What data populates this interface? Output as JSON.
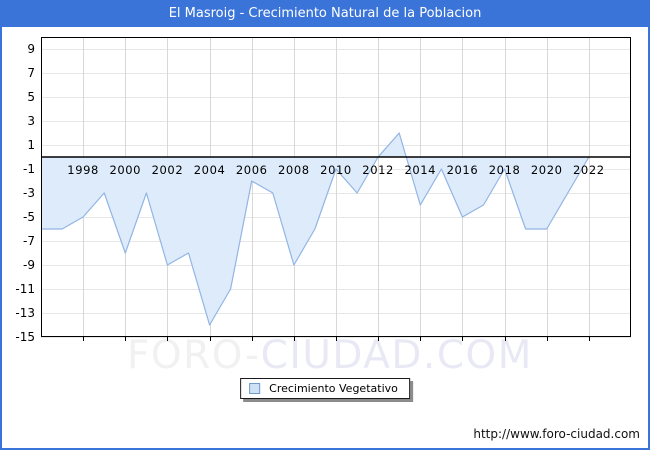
{
  "watermark": {
    "part1": "FORO-",
    "part2": "CIUDAD.COM",
    "full_text": "FORO-CIUDAD.COM"
  },
  "footer": {
    "url": "http://www.foro-ciudad.com"
  },
  "colors": {
    "accent_blue": "#3b74d8",
    "line": "#92b5e4",
    "area_fill": "#ddebfb",
    "grid_vertical": "#d8d8d8",
    "grid_horizontal": "#e7e7e7",
    "axis": "#000000",
    "legend_swatch_fill": "#cfe2f5",
    "legend_swatch_border": "#6f9bca"
  },
  "chart_data": {
    "type": "area",
    "title": "El Masroig - Crecimiento Natural de la Poblacion",
    "x": [
      1996,
      1997,
      1998,
      1999,
      2000,
      2001,
      2002,
      2003,
      2004,
      2005,
      2006,
      2007,
      2008,
      2009,
      2010,
      2011,
      2012,
      2013,
      2014,
      2015,
      2016,
      2017,
      2018,
      2019,
      2020,
      2021,
      2022
    ],
    "series": [
      {
        "name": "Crecimiento Vegetativo",
        "values": [
          -6,
          -6,
          -5,
          -3,
          -8,
          -3,
          -9,
          -8,
          -14,
          -11,
          -2,
          -3,
          -9,
          -6,
          -1,
          -3,
          0,
          2,
          -4,
          -1,
          -5,
          -4,
          -1,
          -6,
          -6,
          -3,
          0
        ]
      }
    ],
    "xlim": [
      1996,
      2024
    ],
    "ylim": [
      -15,
      10
    ],
    "x_ticks": [
      1998,
      2000,
      2002,
      2004,
      2006,
      2008,
      2010,
      2012,
      2014,
      2016,
      2018,
      2020,
      2022
    ],
    "y_ticks": [
      9,
      7,
      5,
      3,
      1,
      -1,
      -3,
      -5,
      -7,
      -9,
      -11,
      -13,
      -15
    ],
    "grid": true,
    "fill_to_zero": true,
    "zero_axis_line": true,
    "legend_position": "bottom-center"
  }
}
